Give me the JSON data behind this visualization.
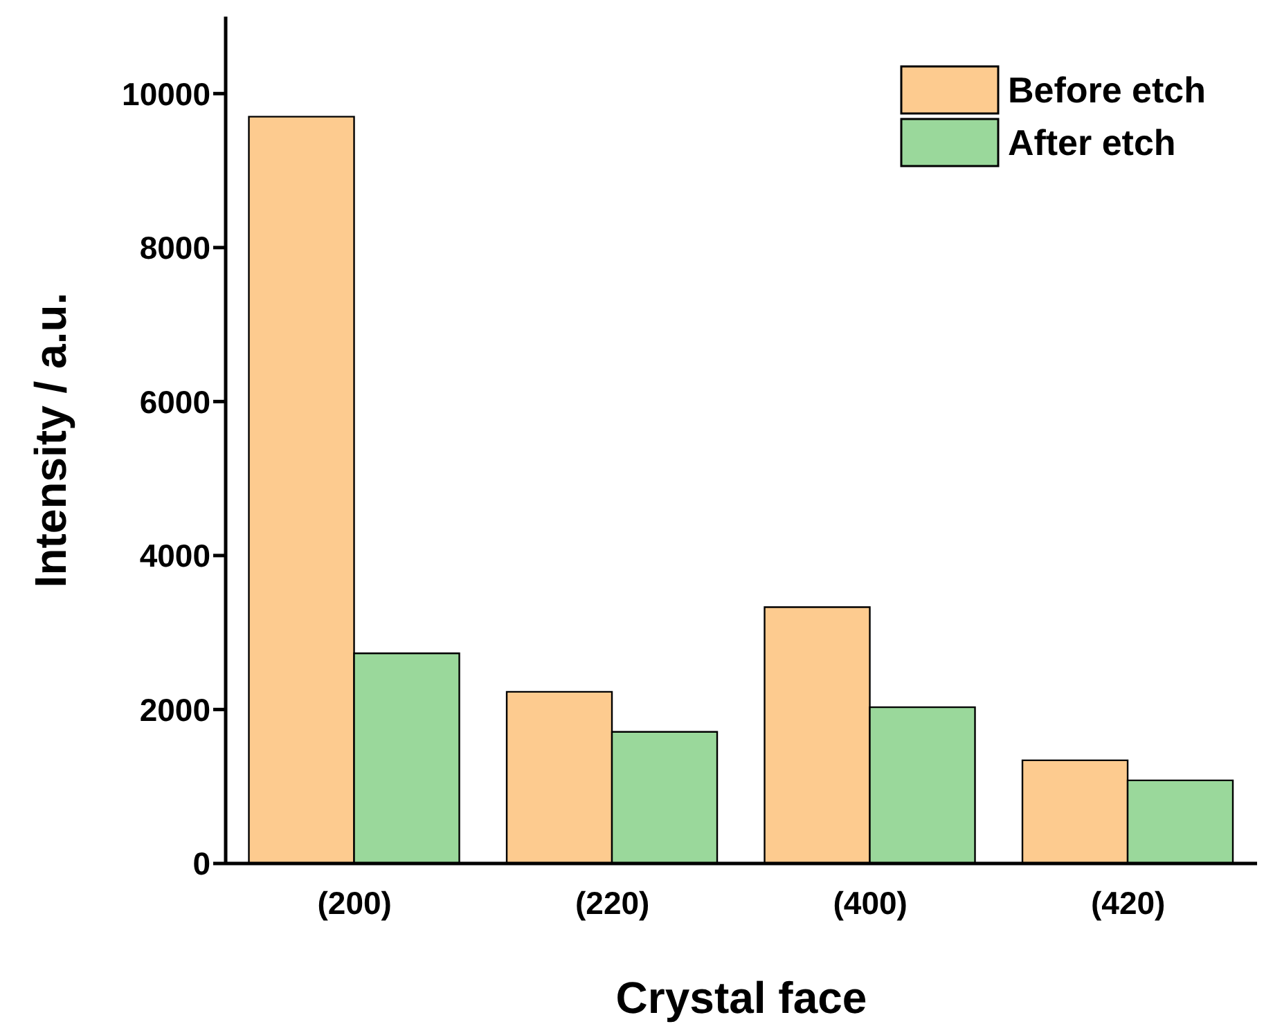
{
  "chart_data": {
    "type": "bar",
    "xlabel": "Crystal face",
    "ylabel": "Intensity / a.u.",
    "categories": [
      "(200)",
      "(220)",
      "(400)",
      "(420)"
    ],
    "series": [
      {
        "name": "Before etch",
        "color": "#fdcb8f",
        "values": [
          9700,
          2230,
          3330,
          1340
        ]
      },
      {
        "name": "After etch",
        "color": "#9ad89b",
        "values": [
          2730,
          1710,
          2030,
          1080
        ]
      }
    ],
    "ylim": [
      0,
      11000
    ],
    "yticks": [
      0,
      2000,
      4000,
      6000,
      8000,
      10000
    ],
    "grid": false,
    "legend": "top right"
  }
}
